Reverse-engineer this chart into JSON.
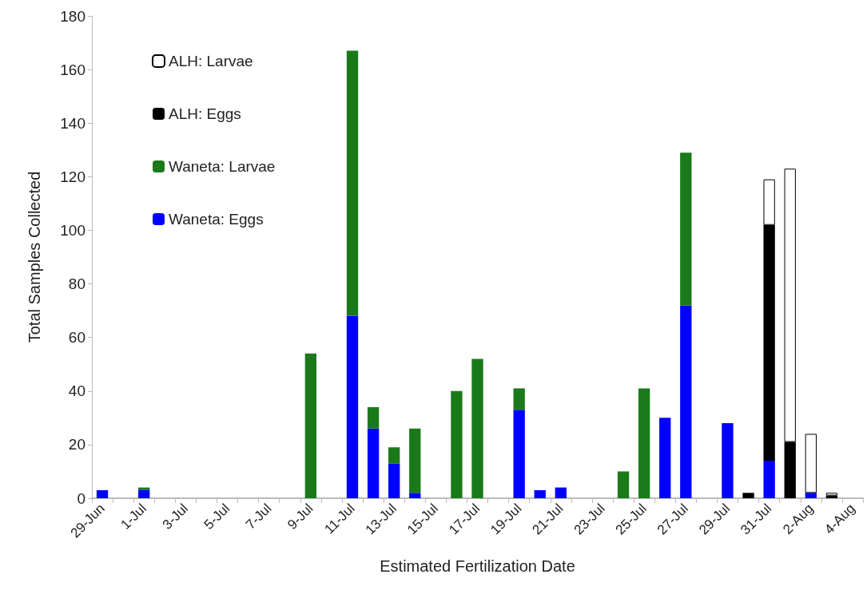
{
  "chart_data": {
    "type": "bar",
    "stacked": true,
    "xlabel": "Estimated Fertilization Date",
    "ylabel": "Total Samples Collected",
    "categories": [
      "29-Jun",
      null,
      "1-Jul",
      null,
      "3-Jul",
      null,
      "5-Jul",
      null,
      "7-Jul",
      null,
      "9-Jul",
      null,
      "11-Jul",
      null,
      "13-Jul",
      null,
      "15-Jul",
      null,
      "17-Jul",
      null,
      "19-Jul",
      null,
      "21-Jul",
      null,
      "23-Jul",
      null,
      "25-Jul",
      null,
      "27-Jul",
      null,
      "29-Jul",
      null,
      "31-Jul",
      null,
      "2-Aug",
      null,
      "4-Aug"
    ],
    "series": [
      {
        "name": "Waneta: Eggs",
        "color": "#0000ff",
        "values": [
          3,
          null,
          3,
          null,
          null,
          null,
          null,
          null,
          null,
          null,
          null,
          null,
          68,
          26,
          13,
          2,
          null,
          null,
          null,
          null,
          33,
          3,
          4,
          null,
          null,
          null,
          null,
          30,
          72,
          null,
          28,
          null,
          14,
          null,
          2,
          null,
          null
        ]
      },
      {
        "name": "Waneta: Larvae",
        "color": "#1a7a1a",
        "values": [
          null,
          null,
          1,
          null,
          null,
          null,
          null,
          null,
          null,
          null,
          54,
          null,
          99,
          8,
          6,
          24,
          null,
          40,
          52,
          null,
          8,
          null,
          null,
          null,
          null,
          10,
          41,
          null,
          57,
          null,
          null,
          null,
          null,
          null,
          null,
          null,
          null
        ]
      },
      {
        "name": "ALH: Eggs",
        "color": "#000000",
        "values": [
          null,
          null,
          null,
          null,
          null,
          null,
          null,
          null,
          null,
          null,
          null,
          null,
          null,
          null,
          null,
          null,
          null,
          null,
          null,
          null,
          null,
          null,
          null,
          null,
          null,
          null,
          null,
          null,
          null,
          null,
          null,
          2,
          88,
          21,
          null,
          1,
          null
        ]
      },
      {
        "name": "ALH: Larvae",
        "color": "#ffffff",
        "values": [
          null,
          null,
          null,
          null,
          null,
          null,
          null,
          null,
          null,
          null,
          null,
          null,
          null,
          null,
          null,
          null,
          null,
          null,
          null,
          null,
          null,
          null,
          null,
          null,
          null,
          null,
          null,
          null,
          null,
          null,
          null,
          null,
          17,
          102,
          22,
          1,
          null
        ]
      }
    ],
    "ylim": [
      0,
      180
    ],
    "yticks": [
      0,
      20,
      40,
      60,
      80,
      100,
      120,
      140,
      160,
      180
    ],
    "grid": false,
    "legend": "top left"
  }
}
